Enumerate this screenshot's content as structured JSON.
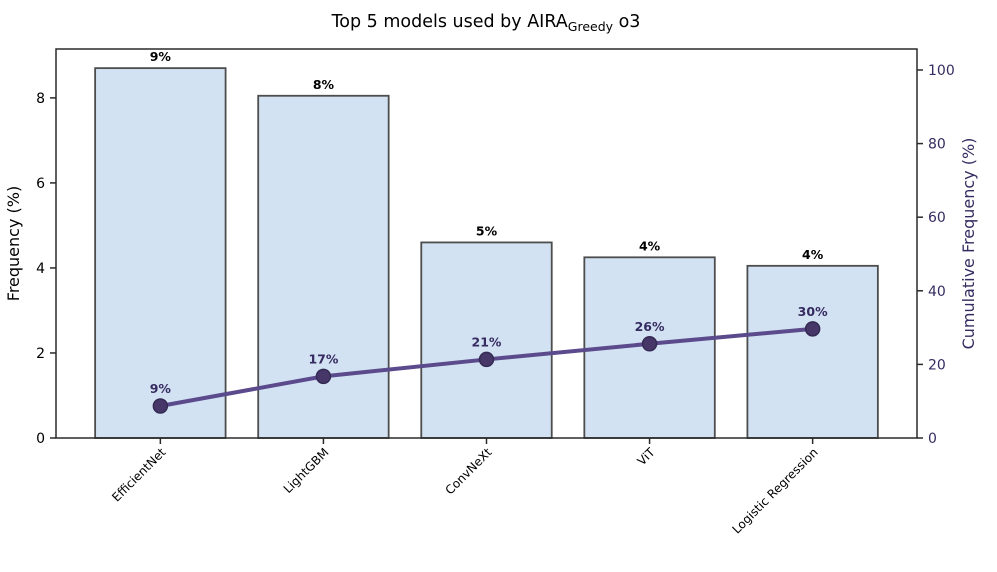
{
  "title": {
    "prefix": "Top 5 models used by AIRA",
    "subscript": "Greedy",
    "suffix": " o3"
  },
  "chart_data": {
    "type": "pareto (bar + cumulative line)",
    "categories": [
      "EfficientNet",
      "LightGBM",
      "ConvNeXt",
      "ViT",
      "Logistic Regression"
    ],
    "series": [
      {
        "name": "Frequency",
        "type": "bar",
        "axis": "left",
        "values": [
          8.7,
          8.05,
          4.6,
          4.25,
          4.05
        ],
        "data_labels": [
          "9%",
          "8%",
          "5%",
          "4%",
          "4%"
        ]
      },
      {
        "name": "Cumulative Frequency",
        "type": "line",
        "axis": "right",
        "values": [
          8.7,
          16.75,
          21.35,
          25.6,
          29.65
        ],
        "data_labels": [
          "9%",
          "17%",
          "21%",
          "26%",
          "30%"
        ]
      }
    ],
    "ylabel_left": "Frequency (%)",
    "ylabel_right": "Cumulative Frequency (%)",
    "yticks_left": [
      0,
      2,
      4,
      6,
      8
    ],
    "yticks_right": [
      0,
      20,
      40,
      60,
      80,
      100
    ],
    "ylim_left": [
      0,
      9.15
    ],
    "ylim_right": [
      0,
      105.7
    ],
    "grid": false,
    "legend": "none",
    "colors": {
      "bar_fill": "#d2e2f3",
      "bar_edge": "#4d4d4d",
      "line": "#5b4a8c",
      "marker_fill": "#473768",
      "marker_edge": "#342a54",
      "right_axis_text": "#362b60",
      "bar_label_text": "#000000",
      "axis_text": "#000000",
      "spine": "#2a2a2a"
    }
  }
}
